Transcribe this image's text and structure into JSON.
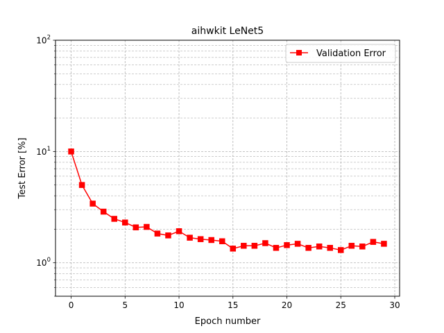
{
  "chart_data": {
    "type": "line",
    "title": "aihwkit LeNet5",
    "xlabel": "Epoch number",
    "ylabel": "Test Error [%]",
    "xlim": [
      -1.45,
      30.45
    ],
    "ylim": [
      0.5,
      100
    ],
    "yscale": "log",
    "grid": true,
    "legend_position": "top-right",
    "x_ticks": [
      0,
      5,
      10,
      15,
      20,
      25,
      30
    ],
    "y_ticks": [
      1,
      10,
      100
    ],
    "y_tick_labels": [
      {
        "base": "10",
        "exp": "0"
      },
      {
        "base": "10",
        "exp": "1"
      },
      {
        "base": "10",
        "exp": "2"
      }
    ],
    "series": [
      {
        "name": "Validation Error",
        "color": "#ff0000",
        "marker": "square",
        "x": [
          0,
          1,
          2,
          3,
          4,
          5,
          6,
          7,
          8,
          9,
          10,
          11,
          12,
          13,
          14,
          15,
          16,
          17,
          18,
          19,
          20,
          21,
          22,
          23,
          24,
          25,
          26,
          27,
          28,
          29
        ],
        "y": [
          10.0,
          5.0,
          3.4,
          2.88,
          2.48,
          2.3,
          2.08,
          2.1,
          1.83,
          1.76,
          1.92,
          1.68,
          1.63,
          1.6,
          1.56,
          1.34,
          1.42,
          1.42,
          1.5,
          1.36,
          1.44,
          1.48,
          1.36,
          1.4,
          1.36,
          1.3,
          1.42,
          1.4,
          1.54,
          1.48
        ]
      }
    ]
  }
}
